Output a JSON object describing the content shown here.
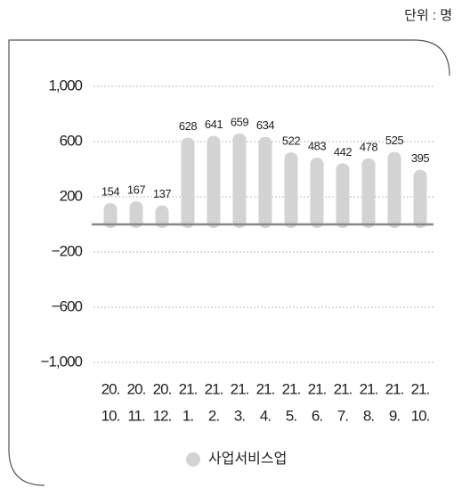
{
  "chart_data": {
    "type": "bar",
    "unit_label": "단위 : 명",
    "categories": [
      [
        "20.",
        "10."
      ],
      [
        "20.",
        "11."
      ],
      [
        "20.",
        "12."
      ],
      [
        "21.",
        "1."
      ],
      [
        "21.",
        "2."
      ],
      [
        "21.",
        "3."
      ],
      [
        "21.",
        "4."
      ],
      [
        "21.",
        "5."
      ],
      [
        "21.",
        "6."
      ],
      [
        "21.",
        "7."
      ],
      [
        "21.",
        "8."
      ],
      [
        "21.",
        "9."
      ],
      [
        "21.",
        "10."
      ]
    ],
    "series": [
      {
        "name": "사업서비스업",
        "color": "#d3d3d3",
        "values": [
          154,
          167,
          137,
          628,
          641,
          659,
          634,
          522,
          483,
          442,
          478,
          525,
          395
        ]
      }
    ],
    "ylim": [
      -1000,
      1000
    ],
    "yticks": [
      {
        "value": -1000,
        "label": "−1,000"
      },
      {
        "value": -600,
        "label": "−600"
      },
      {
        "value": -200,
        "label": "−200"
      },
      200,
      600,
      {
        "value": 1000,
        "label": "1,000"
      }
    ],
    "grid": true,
    "legend": "bottom"
  }
}
